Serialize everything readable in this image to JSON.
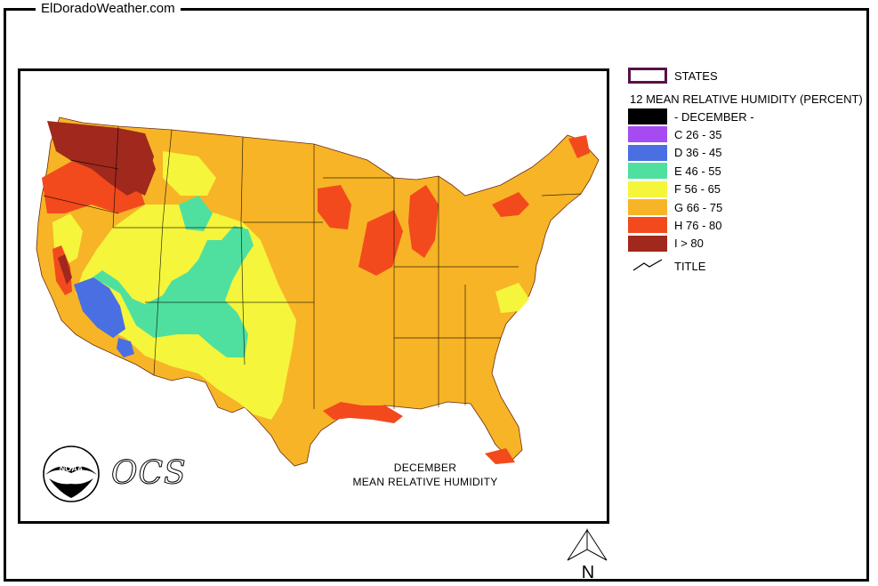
{
  "site_title": "ElDoradoWeather.com",
  "legend": {
    "states_label": "STATES",
    "heading": "12 MEAN RELATIVE HUMIDITY (PERCENT)",
    "items": [
      {
        "label": "- DECEMBER -",
        "color": "#000000"
      },
      {
        "label": "C 26 - 35",
        "color": "#a64bf2"
      },
      {
        "label": "D 36 - 45",
        "color": "#4a6fe3"
      },
      {
        "label": "E 46 - 55",
        "color": "#4fe0a0"
      },
      {
        "label": "F 56 - 65",
        "color": "#f5f53c"
      },
      {
        "label": "G 66 - 75",
        "color": "#f7b426"
      },
      {
        "label": "H 76 - 80",
        "color": "#f24a1d"
      },
      {
        "label": "I > 80",
        "color": "#a0281c"
      }
    ],
    "title_label": "TITLE",
    "states_border_color": "#5a1048"
  },
  "map": {
    "caption_line1": "DECEMBER",
    "caption_line2": "MEAN  RELATIVE HUMIDITY",
    "logo_text": "NOAA",
    "ocs_text": "OCS"
  },
  "north_label": "N"
}
